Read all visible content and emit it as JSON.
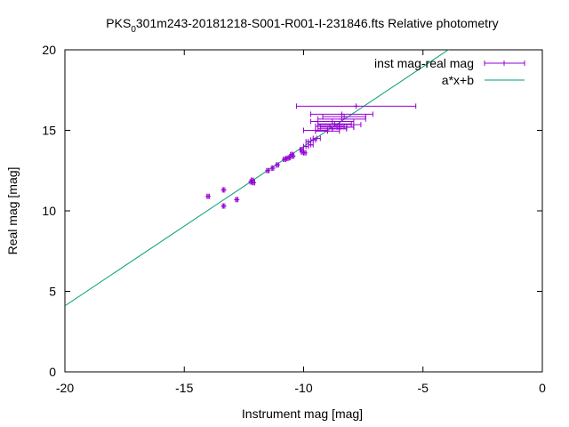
{
  "chart_data": {
    "type": "scatter",
    "title": "PKS_0301m243-20181218-S001-R001-I-231846.fts Relative photometry",
    "title_main": "PKS",
    "title_sub": "0",
    "title_rest": "301m243-20181218-S001-R001-I-231846.fts Relative photometry",
    "xlabel": "Instrument mag [mag]",
    "ylabel": "Real mag [mag]",
    "xlim": [
      -20,
      0
    ],
    "ylim": [
      0,
      20
    ],
    "xticks": [
      "-20",
      "-15",
      "-10",
      "-5",
      "0"
    ],
    "yticks": [
      "0",
      "5",
      "10",
      "15",
      "20"
    ],
    "grid": false,
    "legend_position": "top-right",
    "colors": {
      "points": "#9400d3",
      "fit": "#009e73"
    },
    "series": [
      {
        "name": "inst mag-real mag",
        "style": "points-with-xerrorbars",
        "points": [
          {
            "x": -14.0,
            "y": 10.9,
            "xerr": 0.05
          },
          {
            "x": -13.35,
            "y": 11.3,
            "xerr": 0.05
          },
          {
            "x": -13.35,
            "y": 10.3,
            "xerr": 0.05
          },
          {
            "x": -12.8,
            "y": 10.7,
            "xerr": 0.05
          },
          {
            "x": -12.2,
            "y": 11.8,
            "xerr": 0.05
          },
          {
            "x": -12.15,
            "y": 11.9,
            "xerr": 0.05
          },
          {
            "x": -12.1,
            "y": 11.75,
            "xerr": 0.05
          },
          {
            "x": -11.5,
            "y": 12.5,
            "xerr": 0.05
          },
          {
            "x": -11.3,
            "y": 12.65,
            "xerr": 0.05
          },
          {
            "x": -11.1,
            "y": 12.85,
            "xerr": 0.05
          },
          {
            "x": -10.8,
            "y": 13.2,
            "xerr": 0.05
          },
          {
            "x": -10.6,
            "y": 13.3,
            "xerr": 0.05
          },
          {
            "x": -10.5,
            "y": 13.5,
            "xerr": 0.05
          },
          {
            "x": -10.7,
            "y": 13.25,
            "xerr": 0.05
          },
          {
            "x": -10.45,
            "y": 13.4,
            "xerr": 0.05
          },
          {
            "x": -10.1,
            "y": 13.8,
            "xerr": 0.05
          },
          {
            "x": -10.05,
            "y": 13.65,
            "xerr": 0.05
          },
          {
            "x": -9.95,
            "y": 13.6,
            "xerr": 0.05
          },
          {
            "x": -9.9,
            "y": 14.0,
            "xerr": 0.1
          },
          {
            "x": -9.8,
            "y": 14.3,
            "xerr": 0.1
          },
          {
            "x": -9.7,
            "y": 14.1,
            "xerr": 0.1
          },
          {
            "x": -9.6,
            "y": 14.4,
            "xerr": 0.1
          },
          {
            "x": -9.45,
            "y": 14.5,
            "xerr": 0.15
          },
          {
            "x": -9.5,
            "y": 15.0,
            "xerr": 0.5
          },
          {
            "x": -9.0,
            "y": 14.95,
            "xerr": 0.5
          },
          {
            "x": -8.8,
            "y": 15.1,
            "xerr": 0.6
          },
          {
            "x": -8.9,
            "y": 15.25,
            "xerr": 0.6
          },
          {
            "x": -8.6,
            "y": 15.2,
            "xerr": 0.7
          },
          {
            "x": -8.7,
            "y": 15.4,
            "xerr": 0.7
          },
          {
            "x": -8.8,
            "y": 15.55,
            "xerr": 0.9
          },
          {
            "x": -8.5,
            "y": 15.35,
            "xerr": 0.9
          },
          {
            "x": -8.4,
            "y": 15.7,
            "xerr": 1.0
          },
          {
            "x": -8.3,
            "y": 15.85,
            "xerr": 0.9
          },
          {
            "x": -8.5,
            "y": 15.1,
            "xerr": 0.3
          },
          {
            "x": -8.2,
            "y": 15.2,
            "xerr": 0.3
          },
          {
            "x": -8.4,
            "y": 16.0,
            "xerr": 1.3
          },
          {
            "x": -7.8,
            "y": 16.5,
            "xerr": 2.5
          }
        ]
      },
      {
        "name": "a*x+b",
        "style": "line",
        "slope": 0.99,
        "intercept": 23.9
      }
    ]
  }
}
